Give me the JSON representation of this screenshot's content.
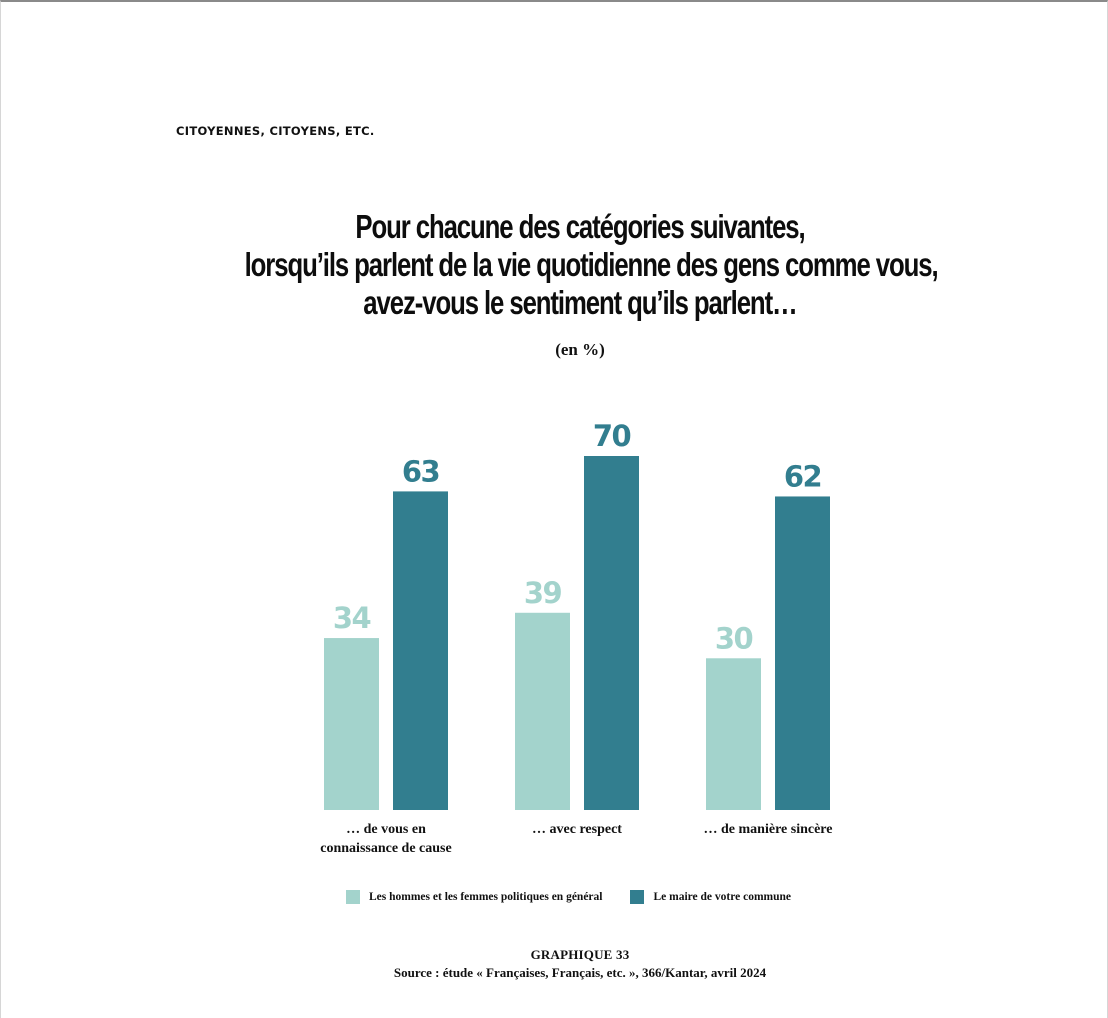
{
  "header": {
    "section_label": "CITOYENNES, CITOYENS, ETC."
  },
  "chart_data": {
    "type": "bar",
    "title_lines": [
      "Pour chacune des catégories suivantes,",
      "lorsqu’ils parlent de la vie quotidienne des gens comme vous,",
      "avez-vous le sentiment qu’ils parlent…"
    ],
    "subtitle": "(en %)",
    "categories": [
      [
        "… de vous en",
        "connaissance de cause"
      ],
      [
        "… avec respect"
      ],
      [
        "… de manière sincère"
      ]
    ],
    "series": [
      {
        "name": "Les hommes et les femmes politiques en général",
        "color": "#a3d3cc",
        "values": [
          34,
          39,
          30
        ]
      },
      {
        "name": "Le maire de votre commune",
        "color": "#327e8f",
        "values": [
          63,
          70,
          62
        ]
      }
    ],
    "ylim": [
      0,
      70
    ],
    "grid": false,
    "legend_position": "bottom"
  },
  "caption": {
    "figure_number": "GRAPHIQUE 33",
    "source": "Source : étude « Françaises, Français, etc. », 366/Kantar, avril 2024"
  }
}
